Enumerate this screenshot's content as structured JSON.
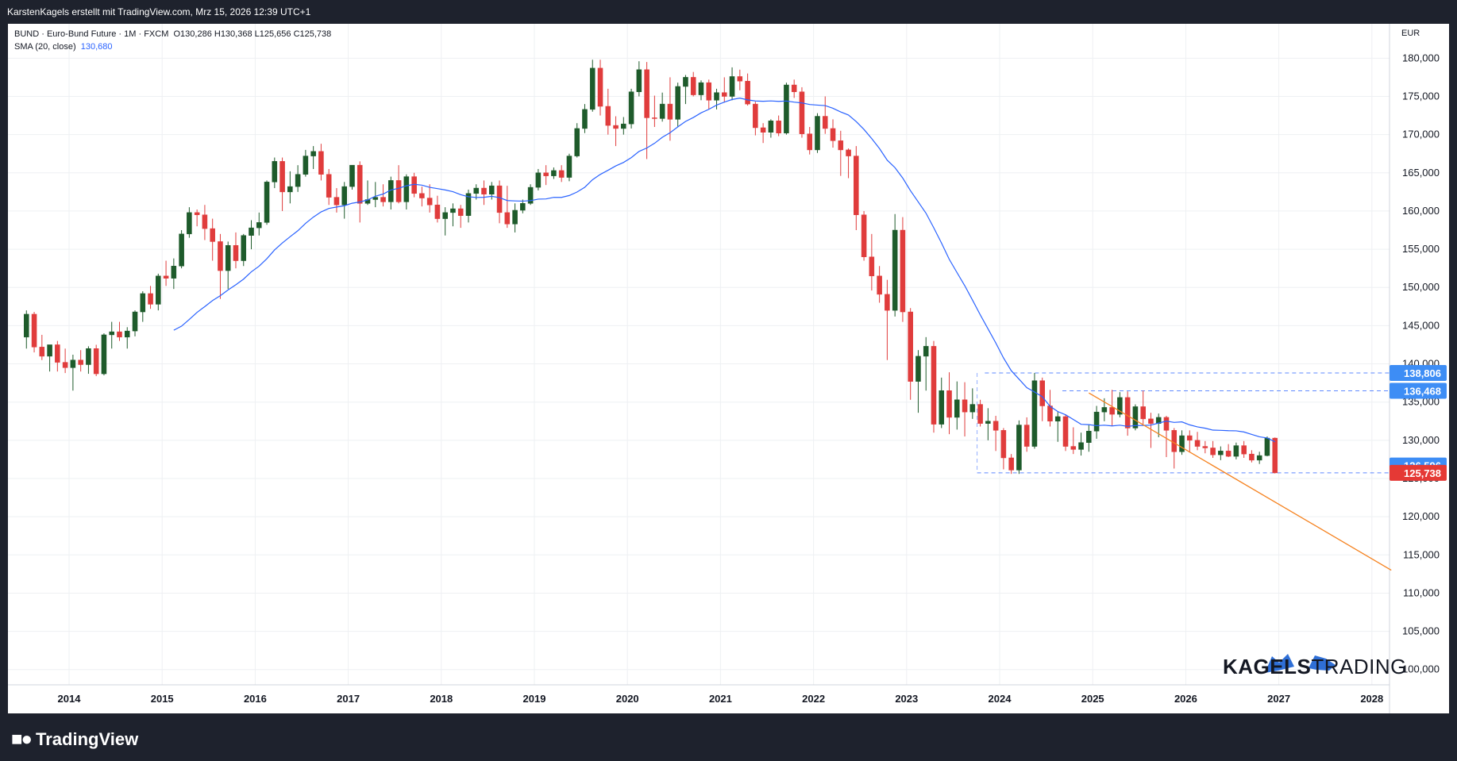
{
  "header": {
    "attribution": "KarstenKagels erstellt mit TradingView.com, Mrz 15, 2026 12:39 UTC+1"
  },
  "legend": {
    "symbol_line": "BUND · Euro-Bund Future · 1M · FXCM",
    "ohlc": "O130,286 H130,368 L125,656 C125,738",
    "sma_label": "SMA (20, close)",
    "sma_value": "130,680"
  },
  "axis": {
    "currency": "EUR"
  },
  "branding": {
    "footer_logo": "TradingView",
    "watermark_bold": "KAGELS",
    "watermark_light": "TRADING"
  },
  "colors": {
    "up": "#1e5b2b",
    "down": "#e03c3c",
    "sma": "#2962ff",
    "trendline": "#f5821f",
    "hline": "#2962ff",
    "price_badge": "#e53935",
    "level_badge": "#3d8df5"
  },
  "chart_data": {
    "type": "candlestick",
    "interval": "1M",
    "x_range": [
      "2013-08",
      "2028-03"
    ],
    "y_range": [
      98000,
      184500
    ],
    "x_ticks": [
      "2014",
      "2015",
      "2016",
      "2017",
      "2018",
      "2019",
      "2020",
      "2021",
      "2022",
      "2023",
      "2024",
      "2025",
      "2026",
      "2027",
      "2028"
    ],
    "y_ticks": [
      "100,000",
      "105,000",
      "110,000",
      "115,000",
      "120,000",
      "125,000",
      "130,000",
      "135,000",
      "140,000",
      "145,000",
      "150,000",
      "155,000",
      "160,000",
      "165,000",
      "170,000",
      "175,000",
      "180,000"
    ],
    "price_labels": [
      {
        "text": "138,806",
        "value": 138806,
        "kind": "level"
      },
      {
        "text": "136,468",
        "value": 136468,
        "kind": "level"
      },
      {
        "text": "126,596",
        "value": 126596,
        "kind": "level"
      },
      {
        "text": "125,738",
        "value": 125738,
        "kind": "last"
      }
    ],
    "horizontal_levels": [
      {
        "value": 138806,
        "from": "2023-11"
      },
      {
        "value": 136468,
        "from": "2024-09"
      },
      {
        "value": 125738,
        "from": "2023-10"
      }
    ],
    "trendline": {
      "from": [
        "2024-12",
        136200
      ],
      "to": [
        "2028-03",
        113000
      ]
    },
    "sma_period": 20,
    "sma_start": "2014-02",
    "start": "2013-07",
    "ohlc": [
      [
        143500,
        147000,
        142000,
        146500
      ],
      [
        146500,
        146800,
        141500,
        142200
      ],
      [
        142200,
        143800,
        140500,
        141000
      ],
      [
        141000,
        142000,
        139000,
        142500
      ],
      [
        142500,
        143000,
        139000,
        140200
      ],
      [
        140200,
        142000,
        138800,
        139500
      ],
      [
        139500,
        141200,
        136500,
        140500
      ],
      [
        140500,
        141800,
        139000,
        139900
      ],
      [
        139900,
        142300,
        138700,
        142000
      ],
      [
        142000,
        142500,
        138400,
        138700
      ],
      [
        138700,
        144000,
        138500,
        143800
      ],
      [
        143800,
        145500,
        142000,
        144200
      ],
      [
        144200,
        145500,
        143000,
        143500
      ],
      [
        143500,
        144800,
        142000,
        144300
      ],
      [
        144300,
        147000,
        143600,
        146800
      ],
      [
        146800,
        149500,
        145500,
        149200
      ],
      [
        149200,
        150200,
        147200,
        147800
      ],
      [
        147800,
        151800,
        147000,
        151500
      ],
      [
        151500,
        153500,
        150200,
        151200
      ],
      [
        151200,
        153800,
        149800,
        152800
      ],
      [
        152800,
        157500,
        152500,
        157000
      ],
      [
        157000,
        160500,
        156500,
        159800
      ],
      [
        159800,
        160200,
        158000,
        159500
      ],
      [
        159500,
        160800,
        156200,
        157700
      ],
      [
        157700,
        159000,
        153500,
        156000
      ],
      [
        156000,
        157000,
        148500,
        152200
      ],
      [
        152200,
        156000,
        149800,
        155500
      ],
      [
        155500,
        157200,
        152500,
        153500
      ],
      [
        153500,
        157000,
        152800,
        156800
      ],
      [
        156800,
        158800,
        155000,
        157800
      ],
      [
        157800,
        159800,
        156800,
        158500
      ],
      [
        158500,
        164000,
        158200,
        163800
      ],
      [
        163800,
        167000,
        163000,
        166500
      ],
      [
        166500,
        167000,
        160000,
        162500
      ],
      [
        162500,
        165200,
        161000,
        163200
      ],
      [
        163200,
        166000,
        162500,
        164800
      ],
      [
        164800,
        168000,
        164500,
        167200
      ],
      [
        167200,
        168500,
        165500,
        167800
      ],
      [
        167800,
        168800,
        164000,
        164800
      ],
      [
        164800,
        165500,
        160800,
        161800
      ],
      [
        161800,
        163000,
        159800,
        160800
      ],
      [
        160800,
        163800,
        159000,
        163200
      ],
      [
        163200,
        166000,
        162800,
        166000
      ],
      [
        166000,
        166500,
        158500,
        161000
      ],
      [
        161000,
        164000,
        160800,
        161500
      ],
      [
        161500,
        163800,
        160500,
        161800
      ],
      [
        161800,
        163500,
        160600,
        161200
      ],
      [
        161200,
        164500,
        160200,
        164000
      ],
      [
        164000,
        166000,
        161000,
        161200
      ],
      [
        161200,
        164800,
        160200,
        164500
      ],
      [
        164500,
        165000,
        161800,
        162300
      ],
      [
        162300,
        163200,
        160600,
        161700
      ],
      [
        161700,
        163500,
        159800,
        160800
      ],
      [
        160800,
        162000,
        158500,
        159000
      ],
      [
        159000,
        160500,
        156800,
        159800
      ],
      [
        159800,
        161000,
        158000,
        160300
      ],
      [
        160300,
        160800,
        157800,
        159400
      ],
      [
        159400,
        162800,
        158500,
        162300
      ],
      [
        162300,
        163500,
        161500,
        163000
      ],
      [
        163000,
        164000,
        160800,
        162200
      ],
      [
        162200,
        163800,
        161500,
        163300
      ],
      [
        163300,
        164000,
        158400,
        159800
      ],
      [
        159800,
        163300,
        157800,
        158300
      ],
      [
        158300,
        161000,
        157200,
        160100
      ],
      [
        160100,
        161500,
        159700,
        161000
      ],
      [
        161000,
        163500,
        160800,
        163100
      ],
      [
        163100,
        165500,
        162700,
        165000
      ],
      [
        165000,
        166000,
        163400,
        164600
      ],
      [
        164600,
        165700,
        164200,
        165300
      ],
      [
        165300,
        166000,
        163800,
        164400
      ],
      [
        164400,
        167500,
        163900,
        167200
      ],
      [
        167200,
        171500,
        167000,
        170800
      ],
      [
        170800,
        174000,
        170200,
        173300
      ],
      [
        173300,
        179800,
        173000,
        178700
      ],
      [
        178700,
        179800,
        172500,
        173700
      ],
      [
        173700,
        176000,
        170000,
        171200
      ],
      [
        171200,
        172400,
        168500,
        170800
      ],
      [
        170800,
        172300,
        170000,
        171400
      ],
      [
        171400,
        176000,
        170800,
        175600
      ],
      [
        175600,
        179600,
        175000,
        178500
      ],
      [
        178500,
        179500,
        166800,
        172200
      ],
      [
        172200,
        175100,
        171000,
        172100
      ],
      [
        172100,
        175500,
        171700,
        174000
      ],
      [
        174000,
        177500,
        169200,
        172000
      ],
      [
        172000,
        176800,
        171000,
        176300
      ],
      [
        176300,
        177800,
        174000,
        177500
      ],
      [
        177500,
        178200,
        175000,
        175200
      ],
      [
        175200,
        177100,
        174500,
        176800
      ],
      [
        176800,
        177200,
        173300,
        174500
      ],
      [
        174500,
        176000,
        173300,
        175500
      ],
      [
        175500,
        177500,
        174200,
        175000
      ],
      [
        175000,
        178800,
        174500,
        177600
      ],
      [
        177600,
        178500,
        175800,
        177000
      ],
      [
        177000,
        178000,
        173800,
        174000
      ],
      [
        174000,
        174300,
        169900,
        170900
      ],
      [
        170900,
        171500,
        168900,
        170300
      ],
      [
        170300,
        172000,
        169600,
        171800
      ],
      [
        171800,
        172500,
        169800,
        170200
      ],
      [
        170200,
        176800,
        170000,
        176500
      ],
      [
        176500,
        177200,
        174800,
        175600
      ],
      [
        175600,
        176200,
        169600,
        170100
      ],
      [
        170100,
        171000,
        167400,
        168000
      ],
      [
        168000,
        172800,
        167600,
        172400
      ],
      [
        172400,
        175000,
        170100,
        170800
      ],
      [
        170800,
        172000,
        168300,
        169200
      ],
      [
        169200,
        170500,
        164600,
        168000
      ],
      [
        168000,
        168200,
        164300,
        167200
      ],
      [
        167200,
        168500,
        157500,
        159500
      ],
      [
        159500,
        160000,
        153500,
        154000
      ],
      [
        154000,
        157000,
        149600,
        151500
      ],
      [
        151500,
        152800,
        148000,
        149100
      ],
      [
        149100,
        151000,
        140500,
        147000
      ],
      [
        147000,
        159600,
        146200,
        157500
      ],
      [
        157500,
        159200,
        145500,
        146800
      ],
      [
        146800,
        147300,
        135300,
        137700
      ],
      [
        137700,
        141800,
        133600,
        141000
      ],
      [
        141000,
        143500,
        136500,
        142300
      ],
      [
        142300,
        143000,
        131000,
        132100
      ],
      [
        132100,
        138200,
        131600,
        136500
      ],
      [
        136500,
        138900,
        130800,
        133000
      ],
      [
        133000,
        137700,
        131400,
        135300
      ],
      [
        135300,
        137600,
        130500,
        133700
      ],
      [
        133700,
        136800,
        132800,
        134700
      ],
      [
        134700,
        135300,
        131800,
        132200
      ],
      [
        132200,
        134200,
        130000,
        132500
      ],
      [
        132500,
        133200,
        128600,
        131300
      ],
      [
        131300,
        131600,
        126200,
        127700
      ],
      [
        127700,
        128200,
        125600,
        126100
      ],
      [
        126100,
        132600,
        125600,
        132000
      ],
      [
        132000,
        133000,
        128500,
        129200
      ],
      [
        129200,
        138806,
        128900,
        137800
      ],
      [
        137800,
        138200,
        132500,
        134500
      ],
      [
        134500,
        136600,
        131800,
        132500
      ],
      [
        132500,
        133700,
        129800,
        133100
      ],
      [
        133100,
        133400,
        128600,
        129200
      ],
      [
        129200,
        131700,
        128200,
        128800
      ],
      [
        128800,
        131000,
        128000,
        129700
      ],
      [
        129700,
        132000,
        128500,
        131200
      ],
      [
        131200,
        134500,
        130200,
        133700
      ],
      [
        133700,
        135500,
        132500,
        134300
      ],
      [
        134300,
        136600,
        131900,
        133400
      ],
      [
        133400,
        136300,
        133000,
        135600
      ],
      [
        135600,
        136400,
        130600,
        131600
      ],
      [
        131600,
        134700,
        131300,
        134400
      ],
      [
        134400,
        136500,
        132100,
        132800
      ],
      [
        132800,
        133600,
        129000,
        132200
      ],
      [
        132200,
        133500,
        130400,
        133000
      ],
      [
        133000,
        133200,
        127800,
        131300
      ],
      [
        131300,
        131600,
        126300,
        128500
      ],
      [
        128500,
        131300,
        128100,
        130600
      ],
      [
        130600,
        131300,
        128400,
        130000
      ],
      [
        130000,
        131100,
        128700,
        129200
      ],
      [
        129200,
        129900,
        128300,
        129000
      ],
      [
        129000,
        129900,
        127700,
        128100
      ],
      [
        128100,
        129200,
        127400,
        128600
      ],
      [
        128600,
        129500,
        127800,
        127900
      ],
      [
        127900,
        129700,
        127500,
        129300
      ],
      [
        129300,
        129900,
        127700,
        128200
      ],
      [
        128200,
        128700,
        127100,
        127400
      ],
      [
        127400,
        128500,
        126900,
        128000
      ],
      [
        128000,
        130500,
        127900,
        130286
      ],
      [
        130286,
        130368,
        125656,
        125738
      ]
    ]
  }
}
